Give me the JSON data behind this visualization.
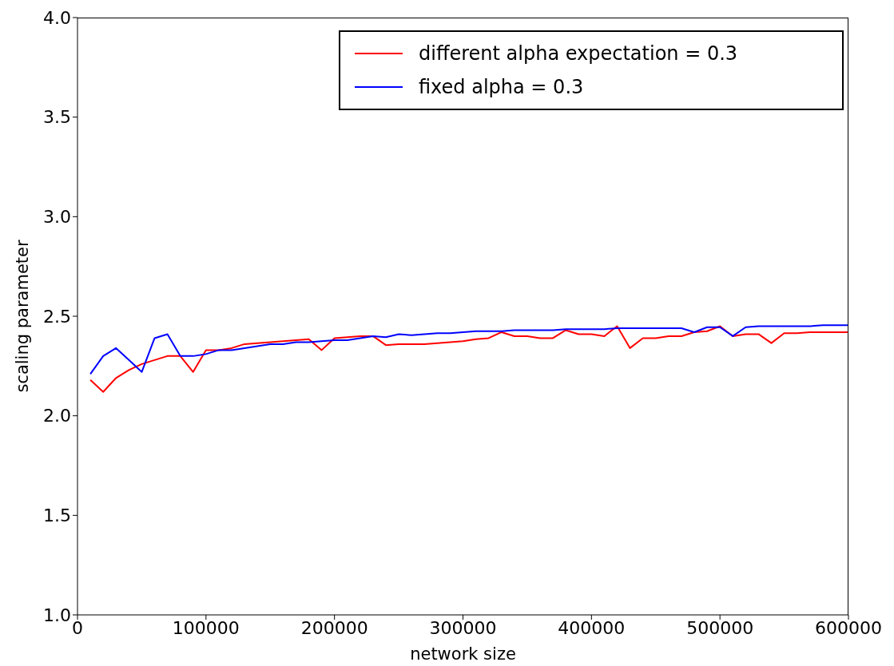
{
  "chart_data": {
    "type": "line",
    "xlabel": "network size",
    "ylabel": "scaling parameter",
    "x": [
      10000,
      20000,
      30000,
      40000,
      50000,
      60000,
      70000,
      80000,
      90000,
      100000,
      110000,
      120000,
      130000,
      140000,
      150000,
      160000,
      170000,
      180000,
      190000,
      200000,
      210000,
      220000,
      230000,
      240000,
      250000,
      260000,
      270000,
      280000,
      290000,
      300000,
      310000,
      320000,
      330000,
      340000,
      350000,
      360000,
      370000,
      380000,
      390000,
      400000,
      410000,
      420000,
      430000,
      440000,
      450000,
      460000,
      470000,
      480000,
      490000,
      500000,
      510000,
      520000,
      530000,
      540000,
      550000,
      560000,
      570000,
      580000,
      590000,
      600000
    ],
    "series": [
      {
        "name": "different alpha expectation = 0.3",
        "color": "#ff0000",
        "values": [
          2.18,
          2.12,
          2.19,
          2.23,
          2.26,
          2.28,
          2.3,
          2.3,
          2.22,
          2.33,
          2.33,
          2.34,
          2.36,
          2.365,
          2.37,
          2.375,
          2.38,
          2.385,
          2.33,
          2.39,
          2.395,
          2.4,
          2.4,
          2.355,
          2.36,
          2.36,
          2.36,
          2.365,
          2.37,
          2.375,
          2.385,
          2.39,
          2.42,
          2.4,
          2.4,
          2.39,
          2.39,
          2.43,
          2.41,
          2.41,
          2.4,
          2.45,
          2.34,
          2.39,
          2.39,
          2.4,
          2.4,
          2.42,
          2.425,
          2.45,
          2.4,
          2.41,
          2.41,
          2.365,
          2.415,
          2.415,
          2.42,
          2.42,
          2.42,
          2.42
        ]
      },
      {
        "name": "fixed alpha = 0.3",
        "color": "#0000ff",
        "values": [
          2.21,
          2.3,
          2.34,
          2.28,
          2.22,
          2.39,
          2.41,
          2.3,
          2.3,
          2.31,
          2.33,
          2.33,
          2.34,
          2.35,
          2.36,
          2.36,
          2.37,
          2.37,
          2.375,
          2.38,
          2.38,
          2.39,
          2.4,
          2.395,
          2.41,
          2.405,
          2.41,
          2.415,
          2.415,
          2.42,
          2.425,
          2.425,
          2.425,
          2.43,
          2.43,
          2.43,
          2.43,
          2.435,
          2.435,
          2.435,
          2.435,
          2.44,
          2.44,
          2.44,
          2.44,
          2.44,
          2.44,
          2.42,
          2.445,
          2.445,
          2.4,
          2.445,
          2.45,
          2.45,
          2.45,
          2.45,
          2.45,
          2.455,
          2.455,
          2.455
        ]
      }
    ],
    "xlim": [
      0,
      600000
    ],
    "xticks": [
      0,
      100000,
      200000,
      300000,
      400000,
      500000,
      600000
    ],
    "ylim": [
      1.0,
      4.0
    ],
    "yticks": [
      {
        "value": 1.0,
        "label": "1.0"
      },
      {
        "value": 1.5,
        "label": "1.5"
      },
      {
        "value": 2.0,
        "label": "2.0"
      },
      {
        "value": 2.5,
        "label": "2.5"
      },
      {
        "value": 3.0,
        "label": "3.0"
      },
      {
        "value": 3.5,
        "label": "3.5"
      },
      {
        "value": 4.0,
        "label": "4.0"
      }
    ],
    "legend": "top right",
    "marker": "none",
    "line_style": "solid",
    "grid": false
  }
}
